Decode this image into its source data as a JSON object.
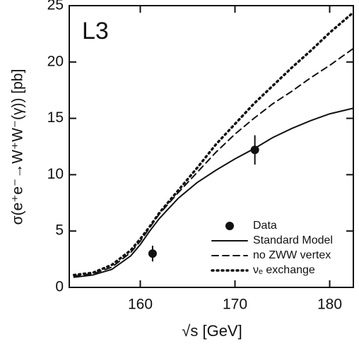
{
  "chart_data": {
    "type": "line",
    "label": "L3",
    "x_label": "√s   [GeV]",
    "y_label": "σ(e⁺e⁻→W⁺W⁻(γ))   [pb]",
    "xlim": [
      152.5,
      182.5
    ],
    "xticks": [
      160,
      170,
      180
    ],
    "ylim": [
      0,
      25
    ],
    "yticks": [
      0,
      5,
      10,
      15,
      20,
      25
    ],
    "legend": "lower right",
    "series": [
      {
        "name": "Data",
        "style": "points",
        "color": "#111111",
        "x": [
          161.3,
          172.1
        ],
        "values": [
          3.0,
          12.2
        ],
        "errors": [
          0.7,
          1.3
        ]
      },
      {
        "name": "Standard Model",
        "style": "solid",
        "color": "#111111",
        "x": [
          153,
          155,
          157,
          159,
          160,
          161,
          162,
          164,
          166,
          168,
          170,
          172,
          174,
          176,
          178,
          180,
          182.5
        ],
        "values": [
          0.9,
          1.1,
          1.6,
          2.8,
          3.8,
          5.0,
          6.1,
          7.9,
          9.3,
          10.4,
          11.4,
          12.3,
          13.3,
          14.1,
          14.8,
          15.4,
          15.9
        ]
      },
      {
        "name": "no ZWW vertex",
        "style": "dashed",
        "color": "#111111",
        "x": [
          153,
          155,
          157,
          159,
          160,
          161,
          162,
          164,
          166,
          168,
          170,
          172,
          174,
          176,
          178,
          180,
          182.5
        ],
        "values": [
          1.0,
          1.2,
          1.8,
          3.1,
          4.1,
          5.3,
          6.5,
          8.4,
          10.2,
          12.0,
          13.6,
          15.0,
          16.3,
          17.4,
          18.6,
          19.7,
          21.2
        ]
      },
      {
        "name": "νₑ exchange",
        "style": "dotted",
        "color": "#111111",
        "x": [
          153,
          155,
          157,
          159,
          160,
          161,
          162,
          164,
          166,
          168,
          170,
          172,
          174,
          176,
          178,
          180,
          182.5
        ],
        "values": [
          1.1,
          1.3,
          2.0,
          3.3,
          4.3,
          5.4,
          6.6,
          8.6,
          10.6,
          12.7,
          14.5,
          16.3,
          17.9,
          19.5,
          21.0,
          22.6,
          24.4
        ]
      }
    ]
  }
}
